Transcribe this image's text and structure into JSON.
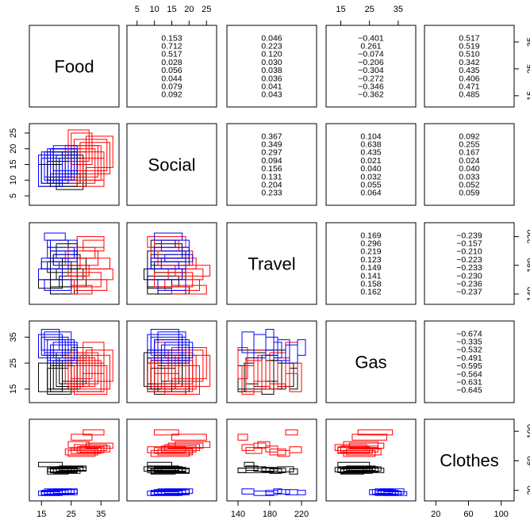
{
  "chart_data": {
    "type": "scatter",
    "subtype": "pairs-matrix with correlation panels",
    "variables": [
      "Food",
      "Social",
      "Travel",
      "Gas",
      "Clothes"
    ],
    "ranges": {
      "Food": [
        12,
        40
      ],
      "Social": [
        3,
        27
      ],
      "Travel": [
        130,
        235
      ],
      "Gas": [
        11,
        40
      ],
      "Clothes": [
        10,
        112
      ]
    },
    "ticks": {
      "Food": [
        15,
        25,
        35
      ],
      "Social": [
        5,
        10,
        15,
        20,
        25
      ],
      "Travel": [
        140,
        180,
        220
      ],
      "Gas": [
        15,
        25,
        35
      ],
      "Clothes": [
        20,
        60,
        100
      ]
    },
    "tick_labels": {
      "Food": [
        "15",
        "25",
        "35"
      ],
      "Social": [
        "5",
        "10",
        "15",
        "20",
        "25"
      ],
      "Travel": [
        "140",
        "180",
        "220"
      ],
      "Gas": [
        "15",
        "25",
        "35"
      ],
      "Clothes": [
        "20",
        "60",
        "100"
      ]
    },
    "group_colors": [
      "#000000",
      "#ff0000",
      "#0000ff"
    ],
    "correlations": {
      "Food|Social": [
        "0.153",
        "0.712",
        "0.517",
        "0.028",
        "0.056",
        "0.044",
        "0.079",
        "0.092"
      ],
      "Food|Travel": [
        "0.046",
        "0.223",
        "0.120",
        "0.030",
        "0.038",
        "0.036",
        "0.041",
        "0.043"
      ],
      "Food|Gas": [
        "−0.401",
        "0.261",
        "−0.074",
        "−0.206",
        "−0.304",
        "−0.272",
        "−0.346",
        "−0.362"
      ],
      "Food|Clothes": [
        "0.517",
        "0.519",
        "0.510",
        "0.342",
        "0.435",
        "0.406",
        "0.471",
        "0.485"
      ],
      "Social|Travel": [
        "0.367",
        "0.349",
        "0.297",
        "0.094",
        "0.156",
        "0.131",
        "0.204",
        "0.233"
      ],
      "Social|Gas": [
        "0.104",
        "0.638",
        "0.435",
        "0.021",
        "0.040",
        "0.032",
        "0.055",
        "0.064"
      ],
      "Social|Clothes": [
        "0.092",
        "0.255",
        "0.167",
        "0.024",
        "0.040",
        "0.033",
        "0.052",
        "0.059"
      ],
      "Travel|Gas": [
        "0.169",
        "0.296",
        "0.219",
        "0.123",
        "0.149",
        "0.141",
        "0.158",
        "0.162"
      ],
      "Travel|Clothes": [
        "−0.239",
        "−0.157",
        "−0.210",
        "−0.223",
        "−0.233",
        "−0.230",
        "−0.236",
        "−0.237"
      ],
      "Gas|Clothes": [
        "−0.674",
        "−0.335",
        "−0.532",
        "−0.491",
        "−0.595",
        "−0.564",
        "−0.631",
        "−0.645"
      ]
    },
    "observations": [
      {
        "group": 0,
        "Food": [
          18,
          27
        ],
        "Social": [
          8,
          19
        ],
        "Travel": [
          140,
          200
        ],
        "Gas": [
          15,
          30
        ],
        "Clothes": [
          44,
          50
        ]
      },
      {
        "group": 0,
        "Food": [
          20,
          29
        ],
        "Social": [
          7,
          18
        ],
        "Travel": [
          160,
          175
        ],
        "Gas": [
          16,
          29
        ],
        "Clothes": [
          46,
          52
        ]
      },
      {
        "group": 0,
        "Food": [
          17,
          25
        ],
        "Social": [
          10,
          19
        ],
        "Travel": [
          170,
          185
        ],
        "Gas": [
          13,
          28
        ],
        "Clothes": [
          45,
          51
        ]
      },
      {
        "group": 0,
        "Food": [
          19,
          28
        ],
        "Social": [
          9,
          20
        ],
        "Travel": [
          180,
          195
        ],
        "Gas": [
          15,
          26
        ],
        "Clothes": [
          43,
          49
        ]
      },
      {
        "group": 0,
        "Food": [
          21,
          30
        ],
        "Social": [
          8,
          17
        ],
        "Travel": [
          150,
          165
        ],
        "Gas": [
          17,
          27
        ],
        "Clothes": [
          47,
          53
        ]
      },
      {
        "group": 0,
        "Food": [
          18,
          26
        ],
        "Social": [
          11,
          20
        ],
        "Travel": [
          140,
          150
        ],
        "Gas": [
          14,
          24
        ],
        "Clothes": [
          44,
          50
        ]
      },
      {
        "group": 0,
        "Food": [
          20,
          27
        ],
        "Social": [
          10,
          18
        ],
        "Travel": [
          190,
          210
        ],
        "Gas": [
          16,
          25
        ],
        "Clothes": [
          45,
          52
        ]
      },
      {
        "group": 0,
        "Food": [
          17,
          24
        ],
        "Social": [
          9,
          16
        ],
        "Travel": [
          205,
          215
        ],
        "Gas": [
          15,
          23
        ],
        "Clothes": [
          42,
          49
        ]
      },
      {
        "group": 0,
        "Food": [
          22,
          30
        ],
        "Social": [
          12,
          19
        ],
        "Travel": [
          175,
          190
        ],
        "Gas": [
          18,
          26
        ],
        "Clothes": [
          46,
          51
        ]
      },
      {
        "group": 0,
        "Food": [
          14,
          22
        ],
        "Social": [
          8,
          15
        ],
        "Travel": [
          148,
          160
        ],
        "Gas": [
          14,
          25
        ],
        "Clothes": [
          52,
          58
        ]
      },
      {
        "group": 1,
        "Food": [
          25,
          35
        ],
        "Social": [
          10,
          21
        ],
        "Travel": [
          150,
          170
        ],
        "Gas": [
          14,
          26
        ],
        "Clothes": [
          70,
          78
        ]
      },
      {
        "group": 1,
        "Food": [
          28,
          38
        ],
        "Social": [
          12,
          22
        ],
        "Travel": [
          175,
          190
        ],
        "Gas": [
          15,
          28
        ],
        "Clothes": [
          72,
          80
        ]
      },
      {
        "group": 1,
        "Food": [
          24,
          33
        ],
        "Social": [
          9,
          20
        ],
        "Travel": [
          190,
          205
        ],
        "Gas": [
          16,
          27
        ],
        "Clothes": [
          66,
          74
        ]
      },
      {
        "group": 1,
        "Food": [
          26,
          37
        ],
        "Social": [
          13,
          23
        ],
        "Travel": [
          145,
          160
        ],
        "Gas": [
          13,
          24
        ],
        "Clothes": [
          74,
          82
        ]
      },
      {
        "group": 1,
        "Food": [
          23,
          34
        ],
        "Social": [
          11,
          21
        ],
        "Travel": [
          180,
          200
        ],
        "Gas": [
          17,
          29
        ],
        "Clothes": [
          68,
          76
        ]
      },
      {
        "group": 1,
        "Food": [
          30,
          39
        ],
        "Social": [
          14,
          24
        ],
        "Travel": [
          160,
          175
        ],
        "Gas": [
          18,
          30
        ],
        "Clothes": [
          77,
          84
        ]
      },
      {
        "group": 1,
        "Food": [
          27,
          36
        ],
        "Social": [
          8,
          19
        ],
        "Travel": [
          205,
          220
        ],
        "Gas": [
          14,
          25
        ],
        "Clothes": [
          71,
          79
        ]
      },
      {
        "group": 1,
        "Food": [
          25,
          32
        ],
        "Social": [
          15,
          25
        ],
        "Travel": [
          140,
          152
        ],
        "Gas": [
          19,
          31
        ],
        "Clothes": [
          88,
          96
        ]
      },
      {
        "group": 1,
        "Food": [
          29,
          36
        ],
        "Social": [
          10,
          17
        ],
        "Travel": [
          200,
          215
        ],
        "Gas": [
          21,
          33
        ],
        "Clothes": [
          95,
          102
        ]
      },
      {
        "group": 1,
        "Food": [
          24,
          31
        ],
        "Social": [
          16,
          26
        ],
        "Travel": [
          165,
          180
        ],
        "Gas": [
          16,
          28
        ],
        "Clothes": [
          78,
          86
        ]
      },
      {
        "group": 2,
        "Food": [
          15,
          24
        ],
        "Social": [
          9,
          19
        ],
        "Travel": [
          175,
          190
        ],
        "Gas": [
          28,
          35
        ],
        "Clothes": [
          14,
          20
        ]
      },
      {
        "group": 2,
        "Food": [
          17,
          26
        ],
        "Social": [
          10,
          20
        ],
        "Travel": [
          190,
          205
        ],
        "Gas": [
          26,
          34
        ],
        "Clothes": [
          15,
          21
        ]
      },
      {
        "group": 2,
        "Food": [
          14,
          22
        ],
        "Social": [
          8,
          18
        ],
        "Travel": [
          160,
          175
        ],
        "Gas": [
          27,
          36
        ],
        "Clothes": [
          13,
          19
        ]
      },
      {
        "group": 2,
        "Food": [
          16,
          25
        ],
        "Social": [
          11,
          19
        ],
        "Travel": [
          145,
          160
        ],
        "Gas": [
          29,
          37
        ],
        "Clothes": [
          15,
          22
        ]
      },
      {
        "group": 2,
        "Food": [
          18,
          27
        ],
        "Social": [
          12,
          20
        ],
        "Travel": [
          200,
          215
        ],
        "Gas": [
          25,
          32
        ],
        "Clothes": [
          14,
          21
        ]
      },
      {
        "group": 2,
        "Food": [
          15,
          21
        ],
        "Social": [
          9,
          17
        ],
        "Travel": [
          175,
          185
        ],
        "Gas": [
          30,
          38
        ],
        "Clothes": [
          13,
          18
        ]
      },
      {
        "group": 2,
        "Food": [
          19,
          27
        ],
        "Social": [
          13,
          21
        ],
        "Travel": [
          185,
          195
        ],
        "Gas": [
          27,
          33
        ],
        "Clothes": [
          16,
          22
        ]
      },
      {
        "group": 2,
        "Food": [
          16,
          23
        ],
        "Social": [
          10,
          18
        ],
        "Travel": [
          215,
          225
        ],
        "Gas": [
          28,
          34
        ],
        "Clothes": [
          14,
          20
        ]
      }
    ]
  }
}
